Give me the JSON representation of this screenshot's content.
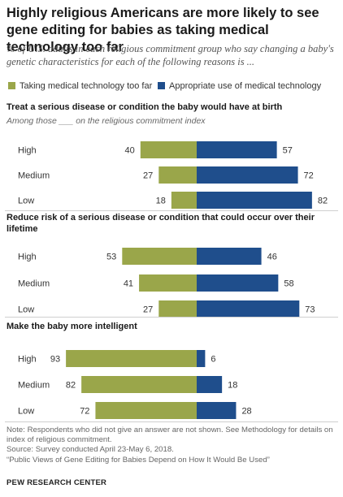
{
  "title": "Highly religious Americans are more likely to see gene editing for babies as taking medical technology too far",
  "subtitle": "% of U.S. adults in each religious commitment group who say changing a baby's genetic characteristics for each of the following reasons is ...",
  "colors": {
    "too_far": "#9aa64a",
    "appropriate": "#1f4e8c"
  },
  "chart_data": [
    {
      "type": "bar",
      "title": "Treat a serious disease or condition the baby would have at birth",
      "subtitle": "Among those ___ on the religious commitment index",
      "categories": [
        "High",
        "Medium",
        "Low"
      ],
      "series": [
        {
          "name": "Taking medical technology too far",
          "values": [
            40,
            27,
            18
          ]
        },
        {
          "name": "Appropriate use of medical technology",
          "values": [
            57,
            72,
            82
          ]
        }
      ]
    },
    {
      "type": "bar",
      "title": "Reduce risk of a serious disease or condition that could occur over their lifetime",
      "categories": [
        "High",
        "Medium",
        "Low"
      ],
      "series": [
        {
          "name": "Taking medical technology too far",
          "values": [
            53,
            41,
            27
          ]
        },
        {
          "name": "Appropriate use of medical technology",
          "values": [
            46,
            58,
            73
          ]
        }
      ]
    },
    {
      "type": "bar",
      "title": "Make the baby more intelligent",
      "categories": [
        "High",
        "Medium",
        "Low"
      ],
      "series": [
        {
          "name": "Taking medical technology too far",
          "values": [
            93,
            82,
            72
          ]
        },
        {
          "name": "Appropriate use of medical technology",
          "values": [
            6,
            18,
            28
          ]
        }
      ]
    }
  ],
  "notes": {
    "note": "Note: Respondents who did not give an answer are not shown. See Methodology for details on index of religious commitment.",
    "source": "Source: Survey conducted April 23-May 6, 2018.",
    "report": "“Public Views of Gene Editing for Babies Depend on How It Would Be Used”"
  },
  "brand": "PEW RESEARCH CENTER"
}
